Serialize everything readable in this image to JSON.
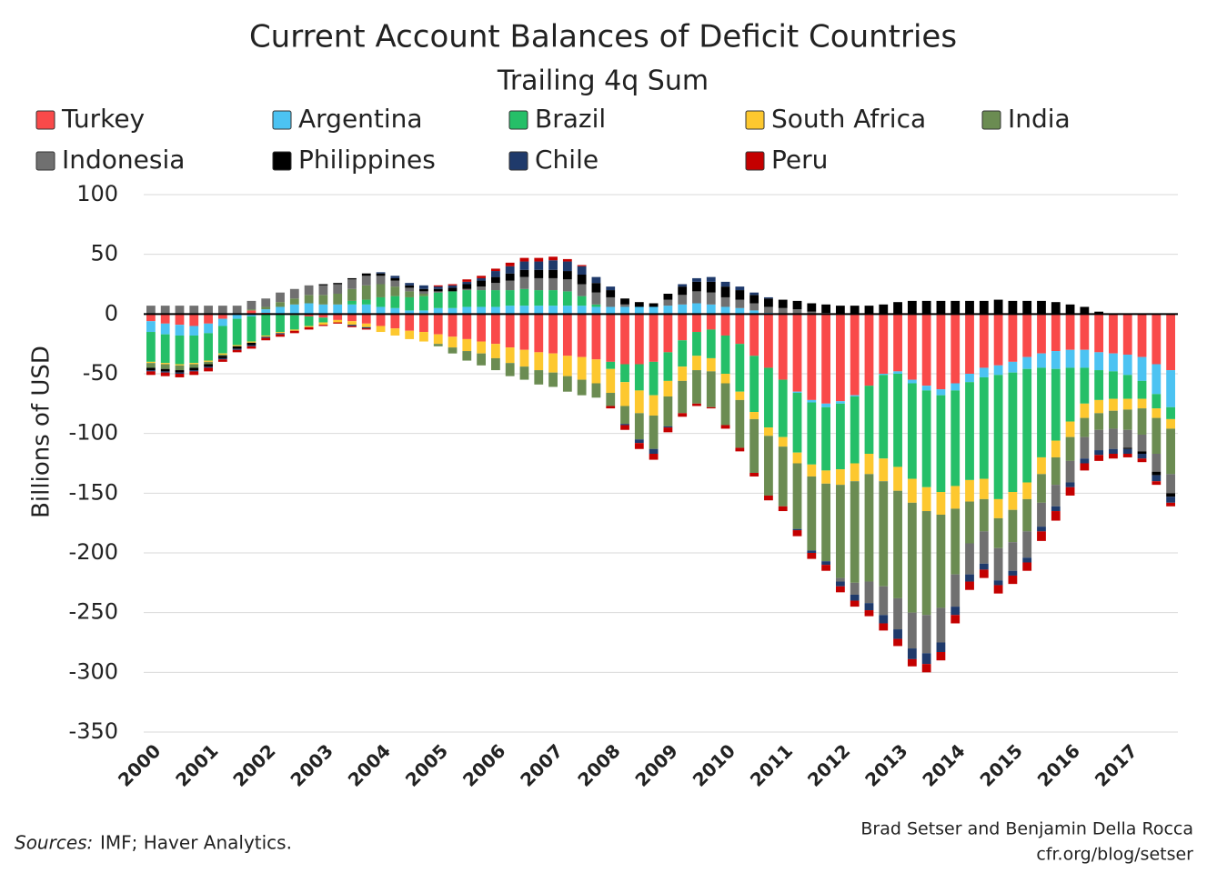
{
  "chart_data": {
    "type": "stacked_bar",
    "title": "Current Account Balances of Deficit Countries",
    "subtitle": "Trailing 4q Sum",
    "y_label": "Billions of USD",
    "source_label": "Sources:",
    "source_text": "IMF; Haver Analytics.",
    "credit": [
      "Brad Setser and Benjamin Della Rocca",
      "cfr.org/blog/setser"
    ],
    "ylim": [
      -350,
      100
    ],
    "yticks": [
      -350,
      -300,
      -250,
      -200,
      -150,
      -100,
      -50,
      0,
      50,
      100
    ],
    "grid": true,
    "categories": [
      "2000",
      null,
      null,
      null,
      "2001",
      null,
      null,
      null,
      "2002",
      null,
      null,
      null,
      "2003",
      null,
      null,
      null,
      "2004",
      null,
      null,
      null,
      "2005",
      null,
      null,
      null,
      "2006",
      null,
      null,
      null,
      "2007",
      null,
      null,
      null,
      "2008",
      null,
      null,
      null,
      "2009",
      null,
      null,
      null,
      "2010",
      null,
      null,
      null,
      "2011",
      null,
      null,
      null,
      "2012",
      null,
      null,
      null,
      "2013",
      null,
      null,
      null,
      "2014",
      null,
      null,
      null,
      "2015",
      null,
      null,
      null,
      "2016",
      null,
      null,
      null,
      "2017",
      null,
      null,
      null
    ],
    "series": [
      {
        "name": "Turkey",
        "color": "#f94a4a",
        "values": [
          -6,
          -8,
          -9,
          -10,
          -8,
          -4,
          0,
          3,
          1,
          0,
          -1,
          -2,
          -3,
          -5,
          -6,
          -8,
          -10,
          -12,
          -14,
          -15,
          -17,
          -19,
          -21,
          -23,
          -25,
          -28,
          -30,
          -32,
          -33,
          -35,
          -36,
          -38,
          -40,
          -42,
          -42,
          -40,
          -32,
          -22,
          -15,
          -13,
          -18,
          -25,
          -35,
          -45,
          -55,
          -65,
          -72,
          -75,
          -73,
          -68,
          -60,
          -50,
          -48,
          -55,
          -60,
          -63,
          -58,
          -50,
          -45,
          -43,
          -40,
          -36,
          -33,
          -31,
          -30,
          -30,
          -32,
          -33,
          -34,
          -36,
          -42,
          -47
        ]
      },
      {
        "name": "Argentina",
        "color": "#4cc3f2",
        "values": [
          -9,
          -9,
          -9,
          -8,
          -8,
          -6,
          -4,
          -2,
          3,
          6,
          8,
          9,
          8,
          8,
          8,
          8,
          6,
          5,
          3,
          3,
          5,
          5,
          6,
          6,
          6,
          7,
          7,
          7,
          7,
          7,
          7,
          6,
          6,
          6,
          6,
          6,
          7,
          8,
          9,
          8,
          6,
          5,
          3,
          1,
          0,
          -1,
          -2,
          -3,
          -2,
          -1,
          0,
          -1,
          -2,
          -3,
          -4,
          -5,
          -6,
          -7,
          -8,
          -8,
          -9,
          -10,
          -12,
          -15,
          -15,
          -15,
          -15,
          -15,
          -17,
          -20,
          -25,
          -31
        ]
      },
      {
        "name": "Brazil",
        "color": "#25bf68",
        "values": [
          -25,
          -24,
          -24,
          -23,
          -23,
          -23,
          -22,
          -21,
          -18,
          -15,
          -12,
          -8,
          -4,
          0,
          3,
          4,
          8,
          10,
          11,
          12,
          13,
          14,
          14,
          14,
          14,
          13,
          14,
          13,
          13,
          12,
          8,
          2,
          -6,
          -15,
          -22,
          -28,
          -24,
          -22,
          -20,
          -24,
          -32,
          -40,
          -47,
          -50,
          -48,
          -50,
          -52,
          -53,
          -55,
          -56,
          -57,
          -70,
          -78,
          -80,
          -81,
          -81,
          -80,
          -82,
          -85,
          -104,
          -100,
          -95,
          -75,
          -60,
          -45,
          -30,
          -25,
          -23,
          -20,
          -15,
          -12,
          -10
        ]
      },
      {
        "name": "South Africa",
        "color": "#fdc82f",
        "values": [
          -1,
          -1,
          -1,
          -1,
          -1,
          -1,
          -1,
          -1,
          -1,
          -1,
          -1,
          -1,
          -2,
          -2,
          -3,
          -3,
          -5,
          -6,
          -7,
          -8,
          -8,
          -9,
          -10,
          -10,
          -12,
          -13,
          -14,
          -15,
          -16,
          -17,
          -19,
          -20,
          -20,
          -20,
          -19,
          -17,
          -13,
          -12,
          -12,
          -11,
          -8,
          -7,
          -6,
          -7,
          -8,
          -9,
          -10,
          -11,
          -13,
          -15,
          -17,
          -19,
          -20,
          -20,
          -20,
          -19,
          -19,
          -18,
          -17,
          -16,
          -15,
          -14,
          -14,
          -14,
          -13,
          -12,
          -11,
          -10,
          -9,
          -8,
          -8,
          -8
        ]
      },
      {
        "name": "India",
        "color": "#6b8c52",
        "values": [
          -4,
          -4,
          -4,
          -3,
          -2,
          -1,
          0,
          1,
          2,
          4,
          5,
          7,
          8,
          9,
          10,
          12,
          11,
          8,
          5,
          2,
          -2,
          -5,
          -8,
          -10,
          -10,
          -11,
          -11,
          -12,
          -12,
          -13,
          -13,
          -12,
          -11,
          -15,
          -22,
          -28,
          -25,
          -27,
          -28,
          -30,
          -35,
          -40,
          -45,
          -50,
          -50,
          -55,
          -62,
          -65,
          -78,
          -85,
          -90,
          -88,
          -90,
          -92,
          -87,
          -78,
          -55,
          -35,
          -27,
          -25,
          -27,
          -27,
          -24,
          -23,
          -20,
          -16,
          -14,
          -15,
          -17,
          -22,
          -30,
          -38
        ]
      },
      {
        "name": "Indonesia",
        "color": "#707070",
        "values": [
          7,
          7,
          7,
          7,
          7,
          7,
          7,
          7,
          7,
          8,
          8,
          8,
          8,
          8,
          8,
          8,
          7,
          5,
          3,
          2,
          1,
          0,
          1,
          3,
          6,
          8,
          10,
          10,
          10,
          10,
          10,
          10,
          8,
          2,
          0,
          0,
          5,
          8,
          10,
          10,
          8,
          7,
          6,
          5,
          5,
          4,
          2,
          1,
          -3,
          -10,
          -18,
          -24,
          -26,
          -30,
          -32,
          -29,
          -27,
          -26,
          -27,
          -27,
          -24,
          -22,
          -20,
          -18,
          -18,
          -18,
          -17,
          -17,
          -15,
          -14,
          -15,
          -16
        ]
      },
      {
        "name": "Philippines",
        "color": "#000000",
        "values": [
          -2,
          -2,
          -2,
          -2,
          -2,
          -2,
          -2,
          -2,
          0,
          0,
          0,
          0,
          1,
          1,
          1,
          2,
          2,
          2,
          2,
          2,
          2,
          3,
          4,
          5,
          5,
          6,
          6,
          7,
          7,
          7,
          8,
          8,
          6,
          5,
          4,
          3,
          5,
          7,
          8,
          9,
          9,
          8,
          7,
          7,
          7,
          7,
          7,
          7,
          7,
          7,
          7,
          8,
          10,
          11,
          11,
          11,
          11,
          11,
          11,
          12,
          11,
          11,
          11,
          10,
          8,
          6,
          2,
          0,
          -1,
          -2,
          -3,
          -3
        ]
      },
      {
        "name": "Chile",
        "color": "#1f3a6b",
        "values": [
          -1,
          -1,
          -1,
          -1,
          -1,
          -1,
          -1,
          -1,
          -1,
          -1,
          0,
          0,
          0,
          0,
          -1,
          -1,
          1,
          2,
          2,
          3,
          2,
          2,
          2,
          2,
          5,
          6,
          7,
          7,
          8,
          8,
          7,
          5,
          3,
          -1,
          -3,
          -4,
          -1,
          2,
          3,
          4,
          4,
          3,
          2,
          1,
          0,
          -1,
          -2,
          -3,
          -4,
          -5,
          -6,
          -7,
          -8,
          -9,
          -9,
          -8,
          -7,
          -6,
          -5,
          -4,
          -4,
          -4,
          -4,
          -4,
          -4,
          -4,
          -4,
          -4,
          -4,
          -4,
          -5,
          -5
        ]
      },
      {
        "name": "Peru",
        "color": "#c40000",
        "values": [
          -3,
          -3,
          -3,
          -3,
          -3,
          -2,
          -2,
          -2,
          -2,
          -2,
          -2,
          -2,
          -1,
          -1,
          -1,
          -1,
          0,
          0,
          0,
          0,
          1,
          1,
          2,
          2,
          2,
          3,
          3,
          3,
          3,
          2,
          1,
          0,
          -2,
          -4,
          -5,
          -5,
          -4,
          -3,
          -2,
          -1,
          -3,
          -3,
          -3,
          -4,
          -4,
          -5,
          -5,
          -5,
          -5,
          -5,
          -5,
          -6,
          -6,
          -6,
          -7,
          -7,
          -7,
          -7,
          -7,
          -7,
          -7,
          -7,
          -8,
          -8,
          -7,
          -6,
          -5,
          -4,
          -3,
          -3,
          -3,
          -3
        ]
      }
    ]
  }
}
